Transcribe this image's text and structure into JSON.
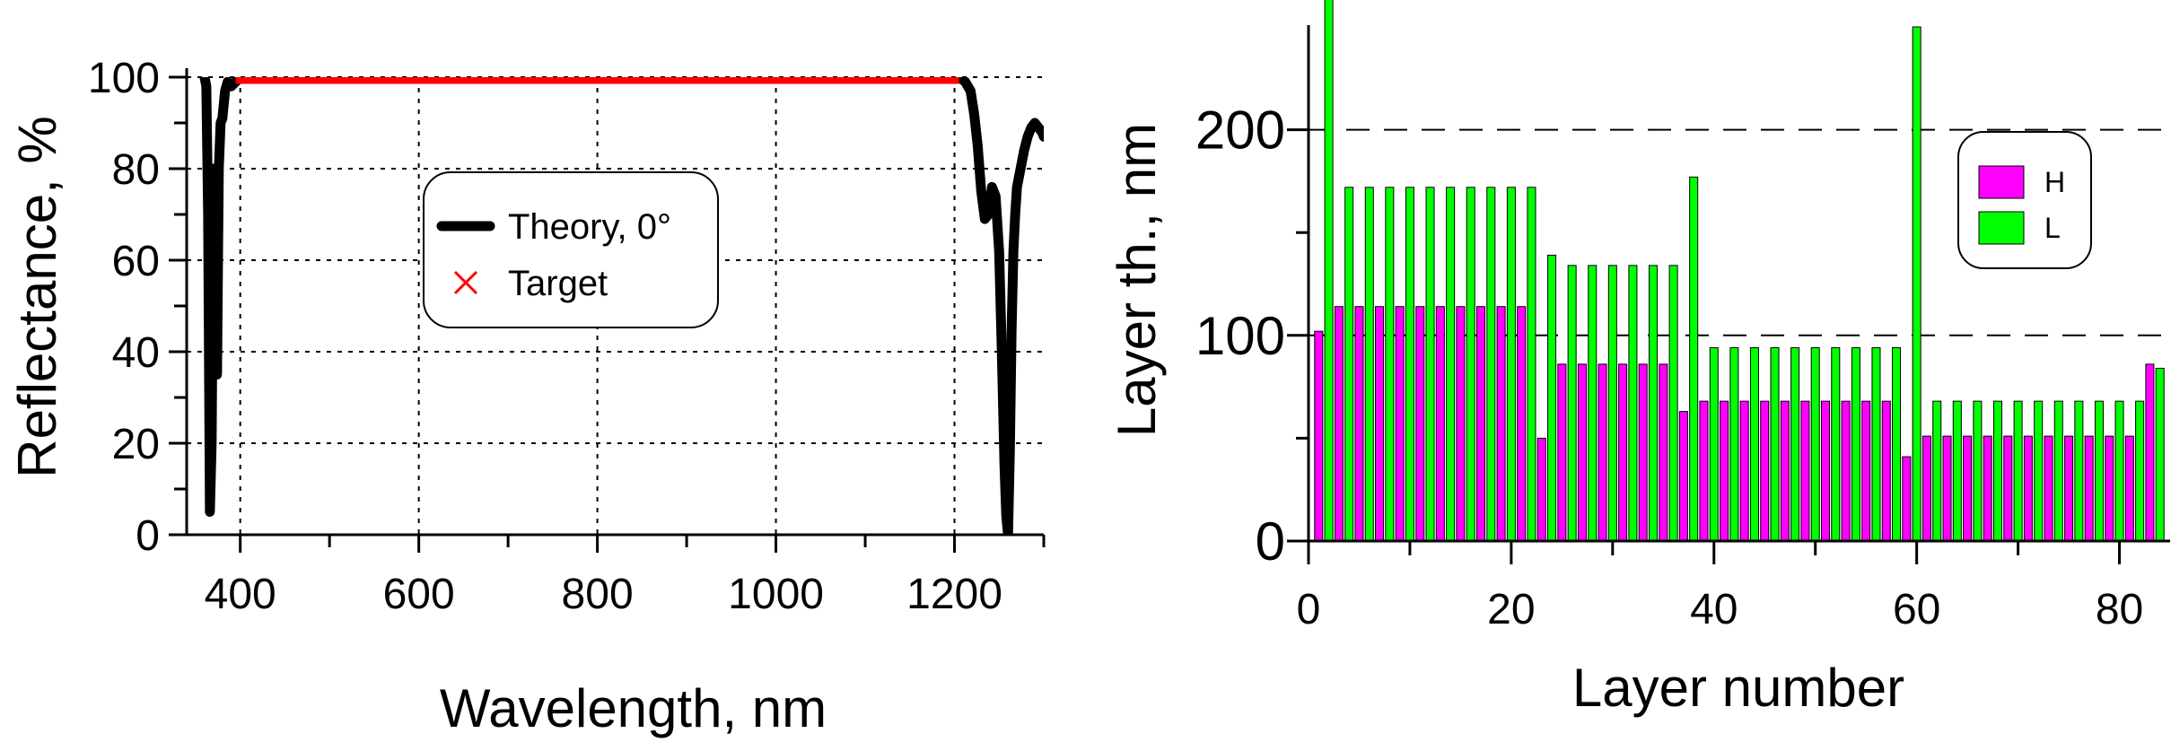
{
  "chart_data": [
    {
      "type": "line",
      "xlabel": "Wavelength, nm",
      "ylabel": "Reflectance, %",
      "xlim": [
        340,
        1300
      ],
      "ylim": [
        0,
        100
      ],
      "x_ticks": [
        400,
        600,
        800,
        1000,
        1200
      ],
      "y_ticks": [
        0,
        20,
        40,
        60,
        80,
        100
      ],
      "grid": true,
      "legend_position": "center",
      "colors": {
        "theory": "#000000",
        "target": "#ff0000"
      },
      "series": [
        {
          "name": "Theory, 0°",
          "x": [
            360,
            362,
            364,
            366,
            368,
            370,
            372,
            374,
            376,
            378,
            380,
            383,
            386,
            390,
            395,
            400,
            450,
            600,
            800,
            1000,
            1150,
            1195,
            1205,
            1212,
            1218,
            1222,
            1226,
            1230,
            1234,
            1238,
            1242,
            1246,
            1250,
            1253,
            1256,
            1258,
            1260,
            1262,
            1264,
            1266,
            1268,
            1270,
            1274,
            1278,
            1282,
            1286,
            1290,
            1294,
            1298,
            1300
          ],
          "values": [
            100,
            98,
            70,
            5,
            20,
            80,
            50,
            35,
            80,
            90,
            91,
            97,
            99,
            98,
            99,
            100,
            100,
            100,
            100,
            100,
            100,
            100,
            100,
            99,
            97,
            92,
            85,
            75,
            69,
            70,
            76,
            74,
            62,
            40,
            15,
            4,
            0,
            18,
            45,
            62,
            70,
            76,
            80,
            84,
            87,
            89,
            90,
            89,
            88,
            87
          ]
        },
        {
          "name": "Target",
          "x_range": [
            400,
            1200
          ],
          "value": 100
        }
      ]
    },
    {
      "type": "bar",
      "xlabel": "Layer number",
      "ylabel": "Layer th., nm",
      "xlim": [
        0,
        85
      ],
      "ylim": [
        0,
        250
      ],
      "x_ticks": [
        0,
        20,
        40,
        60,
        80
      ],
      "y_ticks": [
        0,
        100,
        200
      ],
      "grid": true,
      "legend_position": "upper right",
      "colors": {
        "H": "#ff00ff",
        "L": "#00ff00"
      },
      "series": [
        {
          "name": "H",
          "layers": [
            1,
            3,
            5,
            7,
            9,
            11,
            13,
            15,
            17,
            19,
            21,
            23,
            25,
            27,
            29,
            31,
            33,
            35,
            37,
            39,
            41,
            43,
            45,
            47,
            49,
            51,
            53,
            55,
            57,
            59,
            61,
            63,
            65,
            67,
            69,
            71,
            73,
            75,
            77,
            79,
            81,
            83
          ],
          "values": [
            102,
            114,
            114,
            114,
            114,
            114,
            114,
            114,
            114,
            114,
            114,
            50,
            86,
            86,
            86,
            86,
            86,
            86,
            63,
            68,
            68,
            68,
            68,
            68,
            68,
            68,
            68,
            68,
            68,
            41,
            51,
            51,
            51,
            51,
            51,
            51,
            51,
            51,
            51,
            51,
            51,
            86
          ]
        },
        {
          "name": "L",
          "layers": [
            2,
            4,
            6,
            8,
            10,
            12,
            14,
            16,
            18,
            20,
            22,
            24,
            26,
            28,
            30,
            32,
            34,
            36,
            38,
            40,
            42,
            44,
            46,
            48,
            50,
            52,
            54,
            56,
            58,
            60,
            62,
            64,
            66,
            68,
            70,
            72,
            74,
            76,
            78,
            80,
            82,
            84
          ],
          "values": [
            265,
            172,
            172,
            172,
            172,
            172,
            172,
            172,
            172,
            172,
            172,
            139,
            134,
            134,
            134,
            134,
            134,
            134,
            177,
            94,
            94,
            94,
            94,
            94,
            94,
            94,
            94,
            94,
            94,
            250,
            68,
            68,
            68,
            68,
            68,
            68,
            68,
            68,
            68,
            68,
            68,
            84
          ]
        }
      ]
    }
  ]
}
